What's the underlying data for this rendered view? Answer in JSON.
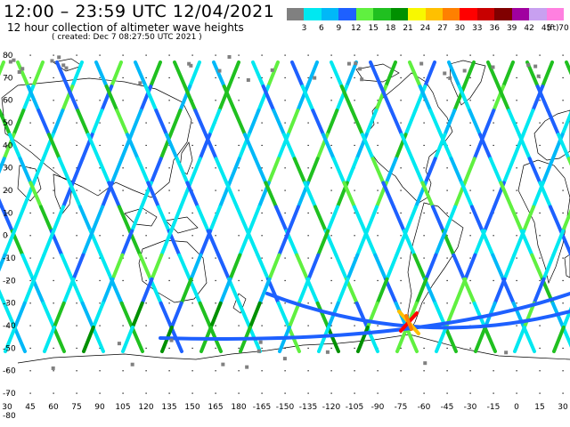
{
  "header": {
    "title": "12:00 – 23:59 UTC 12/04/2021",
    "subtitle": "12 hour collection of altimeter wave heights",
    "created": "( created: Dec  7 08:27:50 UTC 2021 )"
  },
  "legend": {
    "unit": "(ft)",
    "labels": [
      "3",
      "6",
      "9",
      "12",
      "15",
      "18",
      "21",
      "24",
      "27",
      "30",
      "33",
      "36",
      "39",
      "42",
      "45",
      "70"
    ],
    "colors": [
      "#808080",
      "#00e8f0",
      "#00b8f8",
      "#1e60ff",
      "#60f040",
      "#20c020",
      "#009000",
      "#f8f800",
      "#ffc000",
      "#ff8000",
      "#ff0000",
      "#c80000",
      "#800000",
      "#a000a0",
      "#c8a0f0",
      "#ff80e0"
    ]
  },
  "map": {
    "lat_labels": [
      "80",
      "70",
      "60",
      "50",
      "40",
      "30",
      "20",
      "10",
      "0",
      "-10",
      "-20",
      "-30",
      "-40",
      "-50",
      "-60",
      "-70"
    ],
    "lon_labels": [
      "30",
      "45",
      "60",
      "75",
      "90",
      "105",
      "120",
      "135",
      "150",
      "165",
      "180",
      "-165",
      "-150",
      "-135",
      "-120",
      "-105",
      "-90",
      "-75",
      "-60",
      "-45",
      "-30",
      "-15",
      "0",
      "15",
      "30"
    ],
    "bottom_corner_label": "-80"
  }
}
